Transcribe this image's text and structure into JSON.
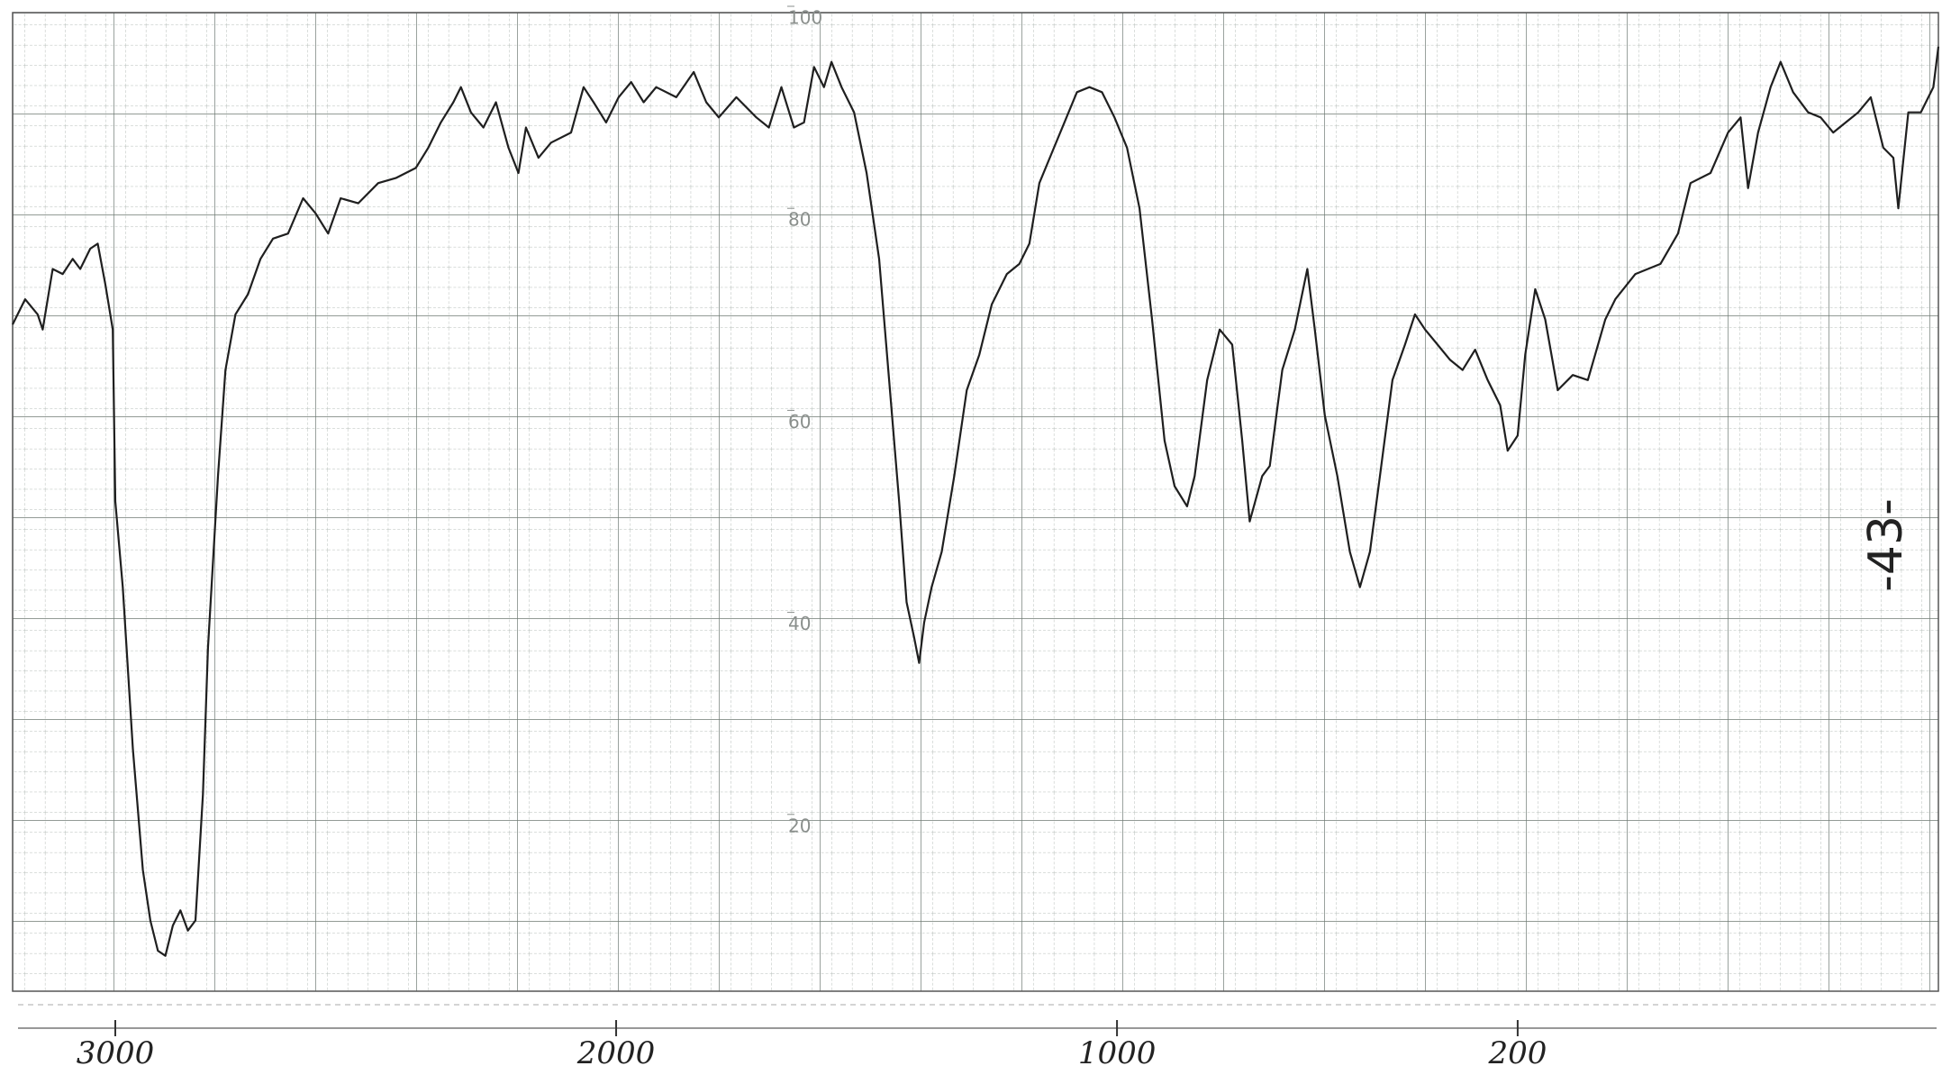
{
  "chart_data": {
    "type": "line",
    "x": [
      3205,
      3180,
      3155,
      3145,
      3125,
      3105,
      3085,
      3070,
      3050,
      3035,
      3020,
      3005,
      3000,
      2985,
      2965,
      2945,
      2930,
      2915,
      2900,
      2885,
      2870,
      2855,
      2840,
      2825,
      2815,
      2795,
      2780,
      2760,
      2735,
      2710,
      2685,
      2655,
      2625,
      2600,
      2575,
      2550,
      2515,
      2475,
      2440,
      2400,
      2375,
      2350,
      2325,
      2310,
      2290,
      2265,
      2240,
      2215,
      2195,
      2180,
      2155,
      2130,
      2090,
      2065,
      2045,
      2020,
      1995,
      1970,
      1945,
      1920,
      1880,
      1845,
      1820,
      1795,
      1760,
      1720,
      1695,
      1670,
      1645,
      1625,
      1605,
      1585,
      1570,
      1550,
      1525,
      1500,
      1475,
      1455,
      1435,
      1420,
      1405,
      1395,
      1385,
      1370,
      1350,
      1325,
      1300,
      1275,
      1250,
      1220,
      1195,
      1175,
      1155,
      1130,
      1105,
      1080,
      1055,
      1030,
      1005,
      980,
      955,
      930,
      905,
      885,
      860,
      845,
      820,
      795,
      770,
      750,
      735,
      710,
      695,
      670,
      645,
      620,
      605,
      585,
      560,
      535,
      515,
      495,
      475,
      450,
      425,
      405,
      385,
      360,
      335,
      310,
      285,
      260,
      235,
      220,
      200,
      185,
      165,
      145,
      120,
      90,
      60,
      25,
      5,
      -35,
      -85,
      -120,
      -145,
      -185,
      -220,
      -245,
      -260,
      -280,
      -305,
      -325,
      -350,
      -380,
      -405,
      -430,
      -455,
      -480,
      -505,
      -530,
      -550,
      -560,
      -580,
      -605,
      -630,
      -640
    ],
    "values": [
      68.5,
      71,
      69.5,
      68,
      74,
      73.5,
      75,
      74,
      76,
      76.5,
      72.5,
      68,
      51,
      42.5,
      26.5,
      14.5,
      9.5,
      6.5,
      6,
      9,
      10.5,
      8.5,
      9.5,
      22,
      36.5,
      53.5,
      64,
      69.5,
      71.5,
      75,
      77,
      77.5,
      81,
      79.5,
      77.5,
      81,
      80.5,
      82.5,
      83,
      84,
      86,
      88.5,
      90.5,
      92,
      89.5,
      88,
      90.5,
      86,
      83.5,
      88,
      85,
      86.5,
      87.5,
      92,
      90.5,
      88.5,
      91,
      92.5,
      90.5,
      92,
      91,
      93.5,
      90.5,
      89,
      91,
      89,
      88,
      92,
      88,
      88.5,
      94,
      92,
      94.5,
      92,
      89.5,
      83.5,
      75,
      63,
      51,
      41,
      37.5,
      35,
      39,
      42.5,
      46,
      53.5,
      62,
      65.5,
      70.5,
      73.5,
      74.5,
      76.5,
      82.5,
      85.5,
      88.5,
      91.5,
      92,
      91.5,
      89,
      86,
      80,
      69,
      57,
      52.5,
      50.5,
      53.5,
      63,
      68,
      66.5,
      57,
      49,
      53.5,
      54.5,
      64,
      68,
      74,
      68,
      59.5,
      53.5,
      46,
      42.5,
      46,
      53.5,
      63,
      66.5,
      69.5,
      68,
      66.5,
      65,
      64,
      66,
      63,
      60.5,
      56,
      57.5,
      65.5,
      72,
      69,
      62,
      63.5,
      63,
      69,
      71,
      73.5,
      74.5,
      77.5,
      82.5,
      83.5,
      87.5,
      89,
      82,
      87.5,
      92,
      94.5,
      91.5,
      89.5,
      89,
      87.5,
      88.5,
      89.5,
      91,
      86,
      85,
      80,
      89.5,
      89.5,
      92,
      96
    ],
    "color": "#1f1f1f",
    "xlim": [
      3205,
      -640
    ],
    "xticks": [
      3000,
      2000,
      1000,
      200
    ],
    "ylim": [
      0,
      100
    ],
    "yticks": [
      20,
      40,
      60,
      80,
      100
    ],
    "annotation": "-43-"
  }
}
